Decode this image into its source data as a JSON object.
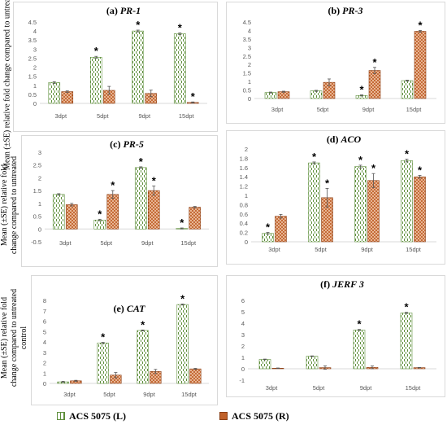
{
  "colors": {
    "leaf_fill": "#ffffff",
    "leaf_pattern": "#5f8f3c",
    "root_fill": "#c0612a",
    "root_pattern": "#ffe4cf",
    "error": "#555555",
    "axis": "#d9d9d9",
    "text": "#595959"
  },
  "legend": {
    "leaf": "ACS 5075 (L)",
    "root": "ACS 5075 (R)"
  },
  "y_axis_labels": {
    "top": "Mean (±SE) relative fold change compared to untreated control",
    "middle_line1": "Mean (±SE) relative fold",
    "middle_line2": "change compared to untreated",
    "bottom_line1": "Mean (±SE) relative fold",
    "bottom_line2": "change compared to untreated",
    "bottom_line3": "control"
  },
  "chart_data": [
    {
      "type": "bar",
      "panel_label": "(a)",
      "gene": "PR-1",
      "categories": [
        "3dpt",
        "5dpt",
        "9dpt",
        "15dpt"
      ],
      "ylim": [
        0,
        4.5
      ],
      "yticks": [
        "0",
        "0.5",
        "1",
        "1.5",
        "2",
        "2.5",
        "3",
        "3.5",
        "4",
        "4.5"
      ],
      "series": [
        {
          "name": "ACS 5075 (L)",
          "values": [
            1.15,
            2.55,
            4.0,
            3.85
          ],
          "errors": [
            0.05,
            0.05,
            0.05,
            0.05
          ],
          "sig": [
            false,
            true,
            true,
            true
          ]
        },
        {
          "name": "ACS 5075 (R)",
          "values": [
            0.65,
            0.72,
            0.55,
            0.05
          ],
          "errors": [
            0.04,
            0.22,
            0.18,
            0.03
          ],
          "sig": [
            false,
            false,
            false,
            true
          ]
        }
      ]
    },
    {
      "type": "bar",
      "panel_label": "(b)",
      "gene": "PR-3",
      "categories": [
        "3dpt",
        "5dpt",
        "9dpt",
        "15dpt"
      ],
      "ylim": [
        0,
        4.5
      ],
      "yticks": [
        "0",
        "0.5",
        "1",
        "1.5",
        "2",
        "2.5",
        "3",
        "3.5",
        "4",
        "4.5"
      ],
      "series": [
        {
          "name": "ACS 5075 (L)",
          "values": [
            0.35,
            0.45,
            0.18,
            1.05
          ],
          "errors": [
            0.03,
            0.03,
            0.03,
            0.03
          ],
          "sig": [
            false,
            false,
            true,
            false
          ]
        },
        {
          "name": "ACS 5075 (R)",
          "values": [
            0.4,
            0.95,
            1.65,
            3.95
          ],
          "errors": [
            0.03,
            0.2,
            0.18,
            0.05
          ],
          "sig": [
            false,
            false,
            true,
            true
          ]
        }
      ]
    },
    {
      "type": "bar",
      "panel_label": "(c)",
      "gene": "PR-5",
      "categories": [
        "3dpt",
        "5dpt",
        "9dpt",
        "15dpt"
      ],
      "ylim": [
        -0.5,
        3
      ],
      "yticks": [
        "-0.5",
        "0",
        "0.5",
        "1",
        "1.5",
        "2",
        "2.5",
        "3"
      ],
      "series": [
        {
          "name": "ACS 5075 (L)",
          "values": [
            1.35,
            0.35,
            2.4,
            0.02
          ],
          "errors": [
            0.03,
            0.03,
            0.03,
            0.02
          ],
          "sig": [
            false,
            true,
            true,
            true
          ]
        },
        {
          "name": "ACS 5075 (R)",
          "values": [
            0.95,
            1.35,
            1.5,
            0.85
          ],
          "errors": [
            0.05,
            0.15,
            0.18,
            0.03
          ],
          "sig": [
            false,
            true,
            true,
            false
          ]
        }
      ]
    },
    {
      "type": "bar",
      "panel_label": "(d)",
      "gene": "ACO",
      "categories": [
        "3dpt",
        "5dpt",
        "9dpt",
        "15dpt"
      ],
      "ylim": [
        0,
        2
      ],
      "yticks": [
        "0",
        "0.2",
        "0.4",
        "0.6",
        "0.8",
        "1",
        "1.2",
        "1.4",
        "1.6",
        "1.8",
        "2"
      ],
      "series": [
        {
          "name": "ACS 5075 (L)",
          "values": [
            0.18,
            1.7,
            1.62,
            1.75
          ],
          "errors": [
            0.02,
            0.02,
            0.03,
            0.03
          ],
          "sig": [
            true,
            true,
            true,
            true
          ]
        },
        {
          "name": "ACS 5075 (R)",
          "values": [
            0.55,
            0.95,
            1.32,
            1.4
          ],
          "errors": [
            0.04,
            0.2,
            0.15,
            0.03
          ],
          "sig": [
            false,
            true,
            true,
            true
          ]
        }
      ]
    },
    {
      "type": "bar",
      "panel_label": "(e)",
      "gene": "CAT",
      "categories": [
        "3dpt",
        "5dpt",
        "9dpt",
        "15dpt"
      ],
      "ylim": [
        0,
        8
      ],
      "yticks": [
        "0",
        "1",
        "2",
        "3",
        "4",
        "5",
        "6",
        "7",
        "8"
      ],
      "series": [
        {
          "name": "ACS 5075 (L)",
          "values": [
            0.15,
            3.9,
            5.1,
            7.6
          ],
          "errors": [
            0.05,
            0.05,
            0.05,
            0.05
          ],
          "sig": [
            false,
            true,
            true,
            true
          ]
        },
        {
          "name": "ACS 5075 (R)",
          "values": [
            0.25,
            0.8,
            1.15,
            1.4
          ],
          "errors": [
            0.05,
            0.25,
            0.2,
            0.05
          ],
          "sig": [
            false,
            false,
            false,
            false
          ]
        }
      ]
    },
    {
      "type": "bar",
      "panel_label": "(f)",
      "gene": "JERF 3",
      "categories": [
        "3dpt",
        "5dpt",
        "9dpt",
        "15dpt"
      ],
      "ylim": [
        -1,
        6
      ],
      "yticks": [
        "-1",
        "0",
        "1",
        "2",
        "3",
        "4",
        "5",
        "6"
      ],
      "series": [
        {
          "name": "ACS 5075 (L)",
          "values": [
            0.82,
            1.1,
            3.4,
            4.9
          ],
          "errors": [
            0.03,
            0.03,
            0.05,
            0.05
          ],
          "sig": [
            false,
            false,
            true,
            true
          ]
        },
        {
          "name": "ACS 5075 (R)",
          "values": [
            0.05,
            0.1,
            0.12,
            0.1
          ],
          "errors": [
            0.02,
            0.15,
            0.12,
            0.02
          ],
          "sig": [
            false,
            false,
            false,
            false
          ]
        }
      ]
    }
  ]
}
